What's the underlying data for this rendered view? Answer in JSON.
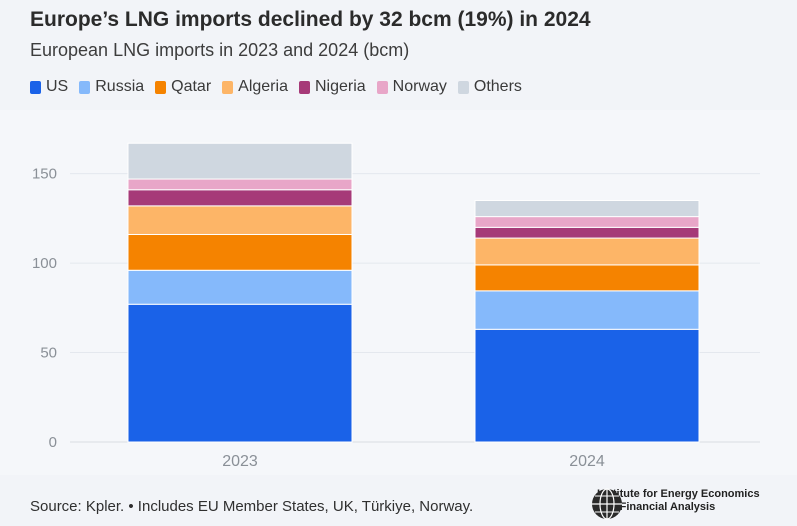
{
  "title": "Europe’s LNG imports declined by 32 bcm (19%) in 2024",
  "subtitle": "European LNG imports in 2023 and 2024 (bcm)",
  "source": "Source: Kpler. • Includes EU Member States, UK, Türkiye, Norway.",
  "logo": {
    "line1": "Institute for Energy Economics",
    "line2": "and Financial Analysis"
  },
  "chart_data": {
    "type": "bar",
    "stacked": true,
    "categories": [
      "2023",
      "2024"
    ],
    "ylim": [
      0,
      180
    ],
    "yticks": [
      0,
      50,
      100,
      150
    ],
    "grid": true,
    "legend_position": "top-left",
    "series": [
      {
        "name": "US",
        "color": "#1a62e8",
        "values": [
          77,
          63
        ]
      },
      {
        "name": "Russia",
        "color": "#85b9fb",
        "values": [
          19,
          21.5
        ]
      },
      {
        "name": "Qatar",
        "color": "#f58300",
        "values": [
          20,
          14.5
        ]
      },
      {
        "name": "Algeria",
        "color": "#fdb567",
        "values": [
          16,
          15
        ]
      },
      {
        "name": "Nigeria",
        "color": "#a63a78",
        "values": [
          9,
          6
        ]
      },
      {
        "name": "Norway",
        "color": "#e8a6c8",
        "values": [
          6,
          6
        ]
      },
      {
        "name": "Others",
        "color": "#cfd7e0",
        "values": [
          20,
          9
        ]
      }
    ]
  }
}
